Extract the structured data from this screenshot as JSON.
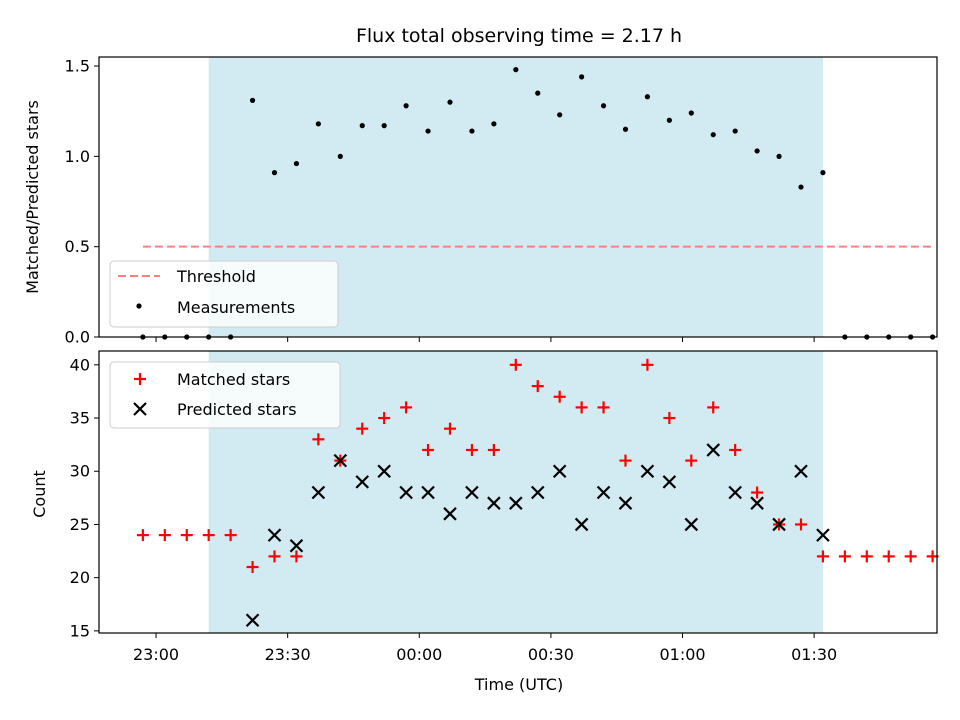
{
  "chart_data": {
    "title": "Flux total observing time = 2.17 h",
    "xlabel": "Time (UTC)",
    "x_tick_values": [
      "22:58",
      "23:28",
      "23:58",
      "00:28",
      "00:58",
      "01:28"
    ],
    "x_tick_labels": [
      "23:00",
      "23:30",
      "00:00",
      "00:30",
      "01:00",
      "01:30"
    ],
    "xlim": [
      "22:45",
      "01:56"
    ],
    "shaded_interval": [
      "23:10",
      "01:30"
    ],
    "shade_color": "#add8e6",
    "x": [
      "22:55",
      "23:00",
      "23:05",
      "23:10",
      "23:15",
      "23:20",
      "23:25",
      "23:30",
      "23:35",
      "23:40",
      "23:45",
      "23:50",
      "23:55",
      "00:00",
      "00:05",
      "00:10",
      "00:15",
      "00:20",
      "00:25",
      "00:30",
      "00:35",
      "00:40",
      "00:45",
      "00:50",
      "00:55",
      "01:00",
      "01:05",
      "01:10",
      "01:15",
      "01:20",
      "01:25",
      "01:30",
      "01:35",
      "01:40",
      "01:45",
      "01:50",
      "01:55"
    ],
    "panels": [
      {
        "type": "scatter",
        "ylabel": "Matched/Predicted stars",
        "ylim": [
          0,
          1.55
        ],
        "y_ticks": [
          "0.0",
          "0.5",
          "1.0",
          "1.5"
        ],
        "legend_position": "lower-left",
        "series": [
          {
            "name": "Threshold",
            "style": "dashed-line",
            "color": "#ff7f7f",
            "x_range": [
              "22:55",
              "01:55"
            ],
            "value": 0.5
          },
          {
            "name": "Measurements",
            "style": "dot",
            "color": "#000000",
            "values": [
              0,
              0,
              0,
              0,
              0,
              1.31,
              0.91,
              0.96,
              1.18,
              1.0,
              1.17,
              1.17,
              1.28,
              1.14,
              1.3,
              1.14,
              1.18,
              1.48,
              1.35,
              1.23,
              1.44,
              1.28,
              1.15,
              1.33,
              1.2,
              1.24,
              1.12,
              1.14,
              1.03,
              1.0,
              0.83,
              0.91,
              0,
              0,
              0,
              0,
              0
            ]
          }
        ]
      },
      {
        "type": "scatter",
        "ylabel": "Count",
        "ylim": [
          14.8,
          41.3
        ],
        "y_ticks": [
          "15",
          "20",
          "25",
          "30",
          "35",
          "40"
        ],
        "legend_position": "upper-left",
        "series": [
          {
            "name": "Matched stars",
            "style": "plus",
            "color": "#ff0000",
            "values": [
              24,
              24,
              24,
              24,
              24,
              21,
              22,
              22,
              33,
              31,
              34,
              35,
              36,
              32,
              34,
              32,
              32,
              40,
              38,
              37,
              36,
              36,
              31,
              40,
              35,
              31,
              36,
              32,
              28,
              25,
              25,
              22,
              22,
              22,
              22,
              22,
              22
            ]
          },
          {
            "name": "Predicted stars",
            "style": "x",
            "color": "#000000",
            "values": [
              null,
              null,
              null,
              null,
              null,
              16,
              24,
              23,
              28,
              31,
              29,
              30,
              28,
              28,
              26,
              28,
              27,
              27,
              28,
              30,
              25,
              28,
              27,
              30,
              29,
              25,
              32,
              28,
              27,
              25,
              30,
              24,
              null,
              null,
              null,
              null,
              null
            ]
          }
        ]
      }
    ]
  }
}
